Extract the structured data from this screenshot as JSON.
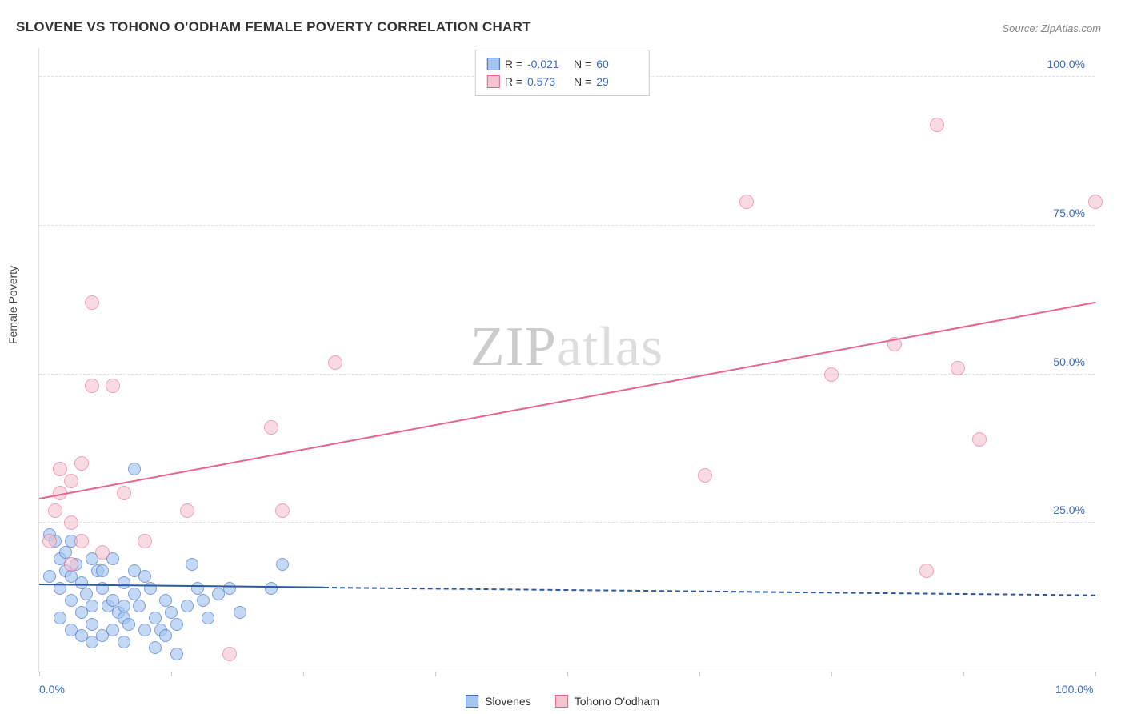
{
  "title": "SLOVENE VS TOHONO O'ODHAM FEMALE POVERTY CORRELATION CHART",
  "source": "Source: ZipAtlas.com",
  "ylabel": "Female Poverty",
  "watermark_zip": "ZIP",
  "watermark_atlas": "atlas",
  "chart": {
    "type": "scatter",
    "xlim": [
      0,
      100
    ],
    "ylim": [
      0,
      105
    ],
    "background_color": "#ffffff",
    "grid_color": "#e0e0e0",
    "tick_label_color": "#3b6bc7",
    "x_ticks": [
      {
        "pos": 0,
        "label": "0.0%"
      },
      {
        "pos": 100,
        "label": "100.0%"
      }
    ],
    "x_tick_marks": [
      0,
      12.5,
      25,
      37.5,
      50,
      62.5,
      75,
      87.5,
      100
    ],
    "y_ticks": [
      {
        "pos": 25,
        "label": "25.0%"
      },
      {
        "pos": 50,
        "label": "50.0%"
      },
      {
        "pos": 75,
        "label": "75.0%"
      },
      {
        "pos": 100,
        "label": "100.0%"
      }
    ],
    "series": [
      {
        "name": "Slovenes",
        "fill_color": "#a4c5f0",
        "stroke_color": "#3b6bc7",
        "marker_radius": 8,
        "marker_opacity": 0.65,
        "trend_color": "#2c5aa0",
        "trend_solid": {
          "x1": 0,
          "y1": 14.5,
          "x2": 27,
          "y2": 14.0
        },
        "trend_dashed": {
          "x1": 27,
          "y1": 14.0,
          "x2": 100,
          "y2": 12.7
        },
        "legend_r": "-0.021",
        "legend_n": "60",
        "points": [
          [
            1,
            23
          ],
          [
            1.5,
            22
          ],
          [
            2,
            19
          ],
          [
            2.5,
            17
          ],
          [
            1,
            16
          ],
          [
            3,
            16
          ],
          [
            2,
            14
          ],
          [
            2.5,
            20
          ],
          [
            3,
            22
          ],
          [
            3.5,
            18
          ],
          [
            4,
            15
          ],
          [
            4.5,
            13
          ],
          [
            5,
            19
          ],
          [
            5.5,
            17
          ],
          [
            6,
            14
          ],
          [
            6.5,
            11
          ],
          [
            7,
            12
          ],
          [
            7.5,
            10
          ],
          [
            8,
            9
          ],
          [
            8.5,
            8
          ],
          [
            9,
            13
          ],
          [
            9.5,
            11
          ],
          [
            10,
            16
          ],
          [
            10.5,
            14
          ],
          [
            11,
            9
          ],
          [
            11.5,
            7
          ],
          [
            12,
            12
          ],
          [
            12.5,
            10
          ],
          [
            13,
            8
          ],
          [
            3,
            12
          ],
          [
            4,
            10
          ],
          [
            5,
            8
          ],
          [
            6,
            17
          ],
          [
            7,
            19
          ],
          [
            8,
            15
          ],
          [
            9,
            17
          ],
          [
            14,
            11
          ],
          [
            14.5,
            18
          ],
          [
            15,
            14
          ],
          [
            15.5,
            12
          ],
          [
            2,
            9
          ],
          [
            3,
            7
          ],
          [
            4,
            6
          ],
          [
            5,
            11
          ],
          [
            17,
            13
          ],
          [
            18,
            14
          ],
          [
            19,
            10
          ],
          [
            5,
            5
          ],
          [
            6,
            6
          ],
          [
            7,
            7
          ],
          [
            8,
            11
          ],
          [
            16,
            9
          ],
          [
            12,
            6
          ],
          [
            22,
            14
          ],
          [
            23,
            18
          ],
          [
            9,
            34
          ],
          [
            11,
            4
          ],
          [
            13,
            3
          ],
          [
            10,
            7
          ],
          [
            8,
            5
          ]
        ]
      },
      {
        "name": "Tohono O'odham",
        "fill_color": "#f5c4d0",
        "stroke_color": "#e8638d",
        "marker_radius": 9,
        "marker_opacity": 0.6,
        "trend_color": "#e8638d",
        "trend_solid": {
          "x1": 0,
          "y1": 29,
          "x2": 100,
          "y2": 62
        },
        "legend_r": "0.573",
        "legend_n": "29",
        "points": [
          [
            1,
            22
          ],
          [
            2,
            30
          ],
          [
            3,
            32
          ],
          [
            4,
            35
          ],
          [
            5,
            48
          ],
          [
            3,
            25
          ],
          [
            4,
            22
          ],
          [
            6,
            20
          ],
          [
            2,
            34
          ],
          [
            1.5,
            27
          ],
          [
            3,
            18
          ],
          [
            5,
            62
          ],
          [
            7,
            48
          ],
          [
            8,
            30
          ],
          [
            10,
            22
          ],
          [
            14,
            27
          ],
          [
            18,
            3
          ],
          [
            23,
            27
          ],
          [
            22,
            41
          ],
          [
            28,
            52
          ],
          [
            63,
            33
          ],
          [
            67,
            79
          ],
          [
            75,
            50
          ],
          [
            81,
            55
          ],
          [
            84,
            17
          ],
          [
            85,
            92
          ],
          [
            89,
            39
          ],
          [
            87,
            51
          ],
          [
            100,
            79
          ]
        ]
      }
    ]
  },
  "legend_top_label_r": "R =",
  "legend_top_label_n": "N =",
  "bottom_legend": [
    {
      "label": "Slovenes",
      "fill": "#a4c5f0",
      "stroke": "#3b6bc7"
    },
    {
      "label": "Tohono O'odham",
      "fill": "#f5c4d0",
      "stroke": "#e8638d"
    }
  ]
}
